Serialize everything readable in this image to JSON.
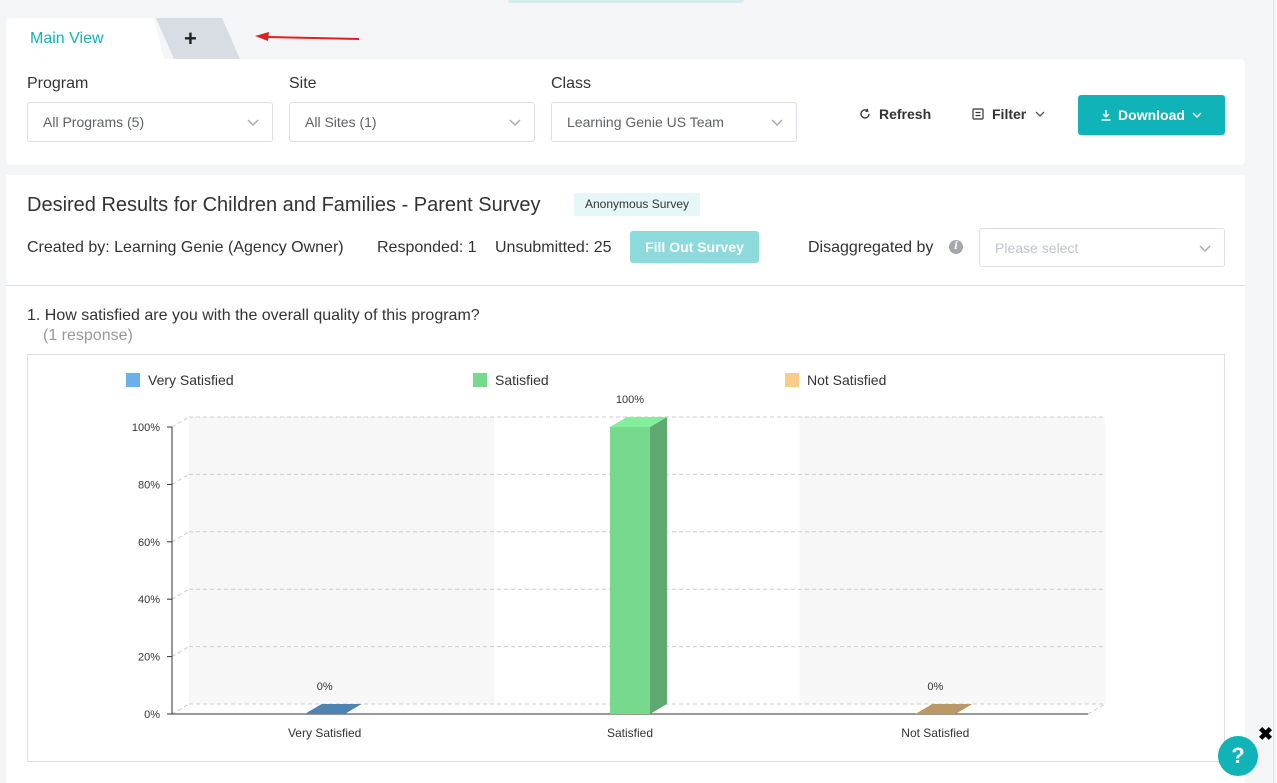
{
  "tabs": {
    "main_label": "Main View",
    "add_label": "+"
  },
  "filters": {
    "program": {
      "label": "Program",
      "value": "All Programs (5)"
    },
    "site": {
      "label": "Site",
      "value": "All Sites (1)"
    },
    "class": {
      "label": "Class",
      "value": "Learning Genie US Team"
    },
    "refresh_label": "Refresh",
    "filter_label": "Filter",
    "download_label": "Download"
  },
  "survey": {
    "title": "Desired Results for Children and Families - Parent Survey",
    "badge": "Anonymous Survey",
    "created_by": "Created by: Learning Genie (Agency Owner)",
    "responded": "Responded: 1",
    "unsubmitted": "Unsubmitted: 25",
    "fill_out_label": "Fill Out Survey",
    "disaggregated_label": "Disaggregated by",
    "disaggregated_placeholder": "Please select"
  },
  "question": {
    "text": "1. How satisfied are you with the overall quality of this program?",
    "responses": "(1 response)"
  },
  "chart_data": {
    "type": "bar",
    "categories": [
      "Very Satisfied",
      "Satisfied",
      "Not Satisfied"
    ],
    "values": [
      0,
      100,
      0
    ],
    "value_labels": [
      "0%",
      "100%",
      "0%"
    ],
    "colors": [
      "#6ab0ea",
      "#77d98e",
      "#f7cd88"
    ],
    "yticks": [
      "0%",
      "20%",
      "40%",
      "60%",
      "80%",
      "100%"
    ],
    "ylim": [
      0,
      100
    ],
    "legend": [
      "Very Satisfied",
      "Satisfied",
      "Not Satisfied"
    ],
    "legend_position": "top",
    "grid": true
  },
  "widgets": {
    "help_label": "?",
    "close_label": "✖"
  },
  "colors": {
    "accent": "#10b3b7",
    "accent_light": "#8ddadc"
  }
}
